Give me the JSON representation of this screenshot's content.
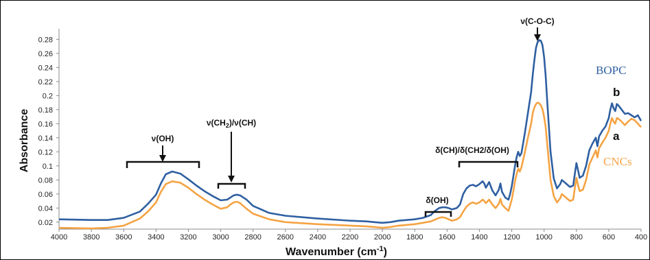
{
  "chart_data": {
    "type": "line",
    "title": "",
    "xlabel": "Wavenumber (cm-1)",
    "xlabel_main": "Wavenumber (cm",
    "xlabel_sup": "-1",
    "xlabel_tail": ")",
    "ylabel": "Absorbance",
    "x_reversed": true,
    "xlim": [
      4000,
      400
    ],
    "ylim": [
      0.01,
      0.295
    ],
    "x_ticks": [
      4000,
      3800,
      3600,
      3400,
      3200,
      3000,
      2800,
      2600,
      2400,
      2200,
      2000,
      1800,
      1600,
      1400,
      1200,
      1000,
      800,
      600,
      400
    ],
    "y_ticks": [
      0.02,
      0.04,
      0.06,
      0.08,
      0.1,
      0.12,
      0.14,
      0.16,
      0.18,
      0.2,
      0.22,
      0.24,
      0.26,
      0.28
    ],
    "y_tick_labels": [
      "0.02",
      "0.04",
      "0.06",
      "0.08",
      "0.1",
      "0.12",
      "0.14",
      "0.16",
      "0.18",
      "0.2",
      "0.22",
      "0.24",
      "0.26",
      "0.28"
    ],
    "grid": false,
    "series": [
      {
        "name": "BOPC",
        "label": "b",
        "color": "#2e5fa1",
        "x": [
          4000,
          3800,
          3700,
          3600,
          3500,
          3450,
          3400,
          3370,
          3340,
          3300,
          3250,
          3200,
          3150,
          3100,
          3050,
          3000,
          2960,
          2940,
          2920,
          2900,
          2880,
          2860,
          2840,
          2800,
          2700,
          2600,
          2400,
          2200,
          2100,
          2050,
          2000,
          1950,
          1900,
          1800,
          1750,
          1700,
          1680,
          1650,
          1630,
          1610,
          1590,
          1570,
          1540,
          1520,
          1500,
          1480,
          1460,
          1440,
          1420,
          1400,
          1380,
          1370,
          1360,
          1340,
          1320,
          1300,
          1280,
          1270,
          1260,
          1240,
          1220,
          1210,
          1200,
          1190,
          1180,
          1170,
          1160,
          1150,
          1140,
          1120,
          1100,
          1080,
          1070,
          1060,
          1050,
          1040,
          1030,
          1020,
          1010,
          1000,
          990,
          980,
          960,
          940,
          920,
          900,
          890,
          880,
          860,
          840,
          820,
          810,
          800,
          790,
          780,
          760,
          740,
          720,
          700,
          680,
          670,
          660,
          640,
          620,
          600,
          590,
          580,
          570,
          560,
          550,
          540,
          520,
          500,
          480,
          460,
          440,
          420,
          400
        ],
        "y": [
          0.024,
          0.023,
          0.023,
          0.026,
          0.035,
          0.046,
          0.059,
          0.075,
          0.088,
          0.092,
          0.089,
          0.081,
          0.072,
          0.064,
          0.057,
          0.051,
          0.052,
          0.055,
          0.058,
          0.059,
          0.058,
          0.055,
          0.052,
          0.043,
          0.033,
          0.029,
          0.025,
          0.022,
          0.021,
          0.02,
          0.019,
          0.02,
          0.022,
          0.024,
          0.026,
          0.03,
          0.035,
          0.04,
          0.041,
          0.041,
          0.04,
          0.038,
          0.04,
          0.045,
          0.06,
          0.068,
          0.072,
          0.073,
          0.071,
          0.074,
          0.078,
          0.075,
          0.069,
          0.077,
          0.065,
          0.058,
          0.066,
          0.075,
          0.063,
          0.055,
          0.052,
          0.06,
          0.071,
          0.085,
          0.1,
          0.112,
          0.12,
          0.114,
          0.118,
          0.145,
          0.175,
          0.205,
          0.23,
          0.25,
          0.268,
          0.276,
          0.279,
          0.278,
          0.272,
          0.255,
          0.228,
          0.19,
          0.12,
          0.082,
          0.068,
          0.074,
          0.08,
          0.078,
          0.074,
          0.07,
          0.072,
          0.088,
          0.104,
          0.094,
          0.083,
          0.086,
          0.1,
          0.122,
          0.132,
          0.14,
          0.128,
          0.142,
          0.15,
          0.156,
          0.168,
          0.18,
          0.189,
          0.182,
          0.178,
          0.188,
          0.186,
          0.18,
          0.174,
          0.175,
          0.172,
          0.169,
          0.172,
          0.164
        ]
      },
      {
        "name": "CNCs",
        "label": "a",
        "color": "#f5a343",
        "x": [
          4000,
          3800,
          3700,
          3600,
          3500,
          3450,
          3400,
          3370,
          3340,
          3300,
          3250,
          3200,
          3150,
          3100,
          3050,
          3000,
          2960,
          2940,
          2920,
          2900,
          2880,
          2860,
          2840,
          2800,
          2700,
          2600,
          2400,
          2200,
          2100,
          2050,
          2000,
          1950,
          1900,
          1800,
          1750,
          1700,
          1680,
          1650,
          1630,
          1610,
          1590,
          1570,
          1540,
          1520,
          1500,
          1480,
          1460,
          1440,
          1420,
          1400,
          1380,
          1370,
          1360,
          1340,
          1320,
          1300,
          1280,
          1270,
          1260,
          1240,
          1220,
          1210,
          1200,
          1190,
          1180,
          1170,
          1160,
          1150,
          1140,
          1120,
          1100,
          1080,
          1070,
          1060,
          1050,
          1040,
          1030,
          1020,
          1010,
          1000,
          990,
          980,
          960,
          940,
          920,
          900,
          890,
          880,
          860,
          840,
          820,
          810,
          800,
          790,
          780,
          760,
          740,
          720,
          700,
          680,
          670,
          660,
          640,
          620,
          600,
          590,
          580,
          570,
          560,
          550,
          540,
          520,
          500,
          480,
          460,
          440,
          420,
          400
        ],
        "y": [
          0.012,
          0.011,
          0.012,
          0.015,
          0.025,
          0.035,
          0.048,
          0.063,
          0.074,
          0.078,
          0.076,
          0.069,
          0.06,
          0.052,
          0.045,
          0.039,
          0.041,
          0.045,
          0.048,
          0.049,
          0.047,
          0.043,
          0.039,
          0.032,
          0.024,
          0.02,
          0.017,
          0.015,
          0.014,
          0.013,
          0.012,
          0.013,
          0.015,
          0.017,
          0.019,
          0.021,
          0.023,
          0.026,
          0.027,
          0.026,
          0.024,
          0.022,
          0.024,
          0.027,
          0.035,
          0.042,
          0.046,
          0.048,
          0.046,
          0.048,
          0.052,
          0.05,
          0.047,
          0.052,
          0.045,
          0.04,
          0.046,
          0.053,
          0.045,
          0.04,
          0.036,
          0.044,
          0.052,
          0.064,
          0.078,
          0.088,
          0.096,
          0.092,
          0.098,
          0.118,
          0.14,
          0.16,
          0.175,
          0.183,
          0.188,
          0.19,
          0.189,
          0.186,
          0.181,
          0.17,
          0.155,
          0.13,
          0.08,
          0.057,
          0.048,
          0.054,
          0.06,
          0.058,
          0.054,
          0.05,
          0.052,
          0.068,
          0.083,
          0.073,
          0.064,
          0.066,
          0.08,
          0.102,
          0.112,
          0.122,
          0.112,
          0.125,
          0.133,
          0.14,
          0.15,
          0.16,
          0.168,
          0.163,
          0.16,
          0.168,
          0.167,
          0.163,
          0.158,
          0.163,
          0.167,
          0.165,
          0.16,
          0.155
        ]
      }
    ],
    "legend": {
      "b_label": "BOPC",
      "a_label": "CNCs",
      "b_letter": "b",
      "a_letter": "a"
    },
    "annotations": {
      "oh": "ν(OH)",
      "ch2_prefix": "ν(CH",
      "ch2_sub": "2",
      "ch2_suffix": ")/ν(CH)",
      "coc": "ν(C-O-C)",
      "delta_oh": "δ(OH)",
      "delta_group": "δ(CH)/δ(CH2/δ(OH)"
    }
  }
}
